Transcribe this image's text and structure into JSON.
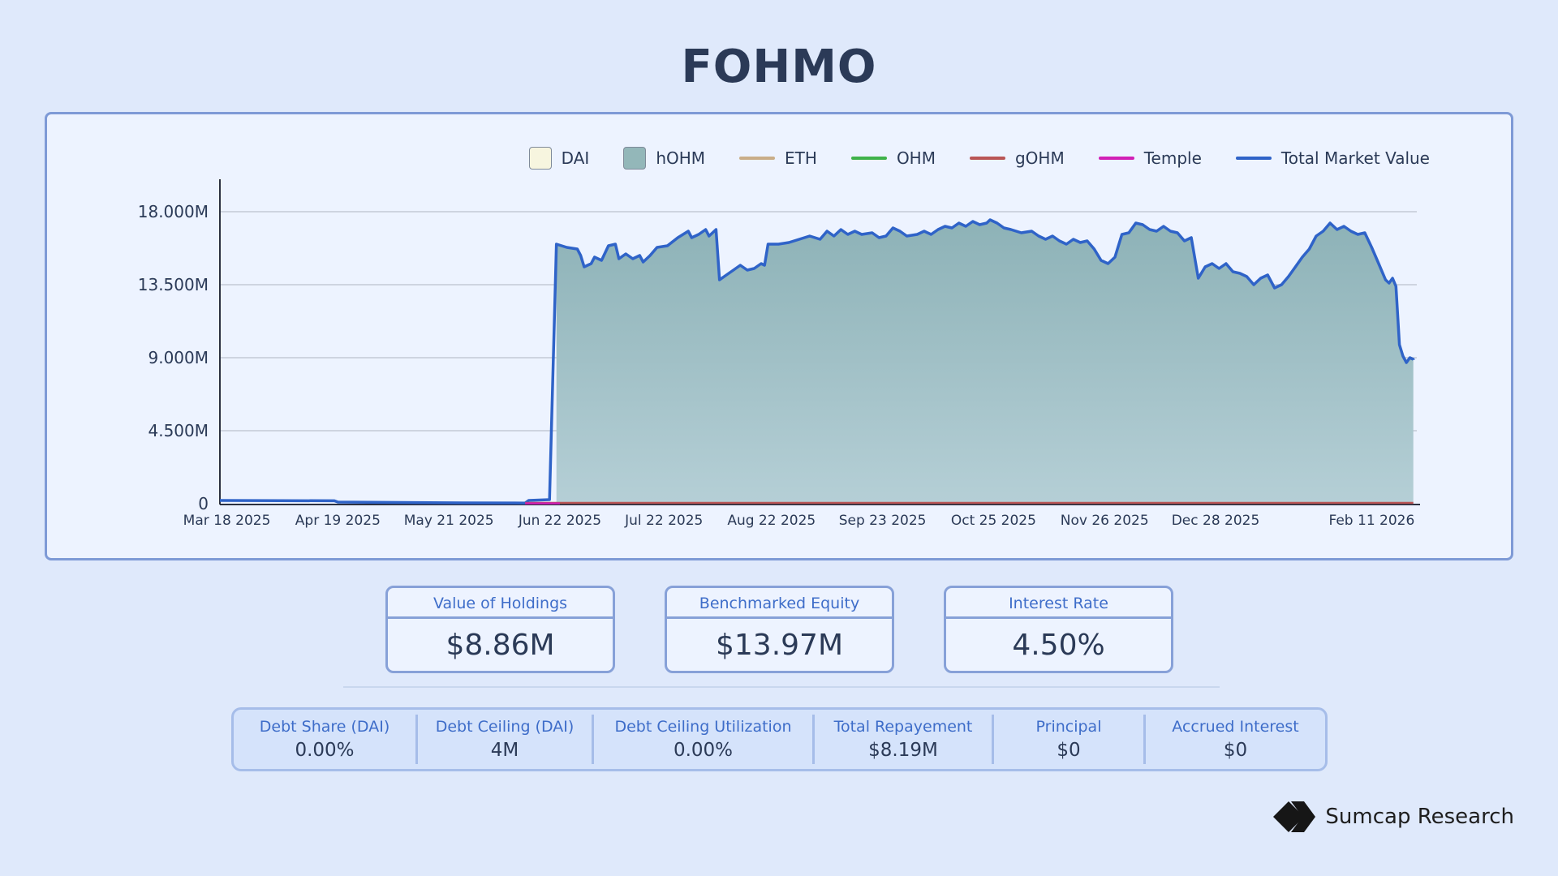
{
  "page": {
    "title": "FOHMO"
  },
  "legend": [
    {
      "label": "DAI",
      "kind": "box",
      "color": "#f7f5df"
    },
    {
      "label": "hOHM",
      "kind": "box",
      "color": "#93b7b9"
    },
    {
      "label": "ETH",
      "kind": "line",
      "color": "#c9ad88"
    },
    {
      "label": "OHM",
      "kind": "line",
      "color": "#3fb24a"
    },
    {
      "label": "gOHM",
      "kind": "line",
      "color": "#b95555"
    },
    {
      "label": "Temple",
      "kind": "line",
      "color": "#d11fb6"
    },
    {
      "label": "Total Market Value",
      "kind": "line",
      "color": "#2f63c8"
    }
  ],
  "chart_data": {
    "type": "area",
    "ylim": [
      0,
      20000000
    ],
    "yticks": [
      {
        "v": 0,
        "label": "0"
      },
      {
        "v": 4500000,
        "label": "4.500M"
      },
      {
        "v": 9000000,
        "label": "9.000M"
      },
      {
        "v": 13500000,
        "label": "13.500M"
      },
      {
        "v": 18000000,
        "label": "18.000M"
      }
    ],
    "xlim": [
      "2025-03-16",
      "2026-02-24"
    ],
    "xticks": [
      {
        "date": "2025-03-18",
        "label": "Mar 18 2025"
      },
      {
        "date": "2025-04-19",
        "label": "Apr 19 2025"
      },
      {
        "date": "2025-05-21",
        "label": "May 21 2025"
      },
      {
        "date": "2025-06-22",
        "label": "Jun 22 2025"
      },
      {
        "date": "2025-07-22",
        "label": "Jul 22 2025"
      },
      {
        "date": "2025-08-22",
        "label": "Aug 22 2025"
      },
      {
        "date": "2025-09-23",
        "label": "Sep 23 2025"
      },
      {
        "date": "2025-10-25",
        "label": "Oct 25 2025"
      },
      {
        "date": "2025-11-26",
        "label": "Nov 26 2025"
      },
      {
        "date": "2025-12-28",
        "label": "Dec 28 2025"
      },
      {
        "date": "2026-02-11",
        "label": "Feb 11 2026"
      }
    ],
    "grid": true,
    "legend_position": "top-right",
    "series": [
      {
        "name": "Total Market Value",
        "color": "#2f63c8",
        "fill": true,
        "points": [
          [
            "2025-03-16",
            200000
          ],
          [
            "2025-04-18",
            180000
          ],
          [
            "2025-04-19",
            100000
          ],
          [
            "2025-05-25",
            50000
          ],
          [
            "2025-06-12",
            40000
          ],
          [
            "2025-06-13",
            200000
          ],
          [
            "2025-06-19",
            250000
          ],
          [
            "2025-06-21",
            16000000
          ],
          [
            "2025-06-24",
            15800000
          ],
          [
            "2025-06-27",
            15700000
          ],
          [
            "2025-06-28",
            15300000
          ],
          [
            "2025-06-29",
            14600000
          ],
          [
            "2025-07-01",
            14800000
          ],
          [
            "2025-07-02",
            15200000
          ],
          [
            "2025-07-04",
            15000000
          ],
          [
            "2025-07-06",
            15900000
          ],
          [
            "2025-07-08",
            16000000
          ],
          [
            "2025-07-09",
            15100000
          ],
          [
            "2025-07-11",
            15400000
          ],
          [
            "2025-07-13",
            15100000
          ],
          [
            "2025-07-15",
            15300000
          ],
          [
            "2025-07-16",
            14900000
          ],
          [
            "2025-07-18",
            15300000
          ],
          [
            "2025-07-20",
            15800000
          ],
          [
            "2025-07-23",
            15900000
          ],
          [
            "2025-07-26",
            16400000
          ],
          [
            "2025-07-29",
            16800000
          ],
          [
            "2025-07-30",
            16400000
          ],
          [
            "2025-08-01",
            16600000
          ],
          [
            "2025-08-03",
            16900000
          ],
          [
            "2025-08-04",
            16500000
          ],
          [
            "2025-08-06",
            16900000
          ],
          [
            "2025-08-07",
            13800000
          ],
          [
            "2025-08-09",
            14100000
          ],
          [
            "2025-08-11",
            14400000
          ],
          [
            "2025-08-13",
            14700000
          ],
          [
            "2025-08-15",
            14400000
          ],
          [
            "2025-08-17",
            14500000
          ],
          [
            "2025-08-19",
            14800000
          ],
          [
            "2025-08-20",
            14700000
          ],
          [
            "2025-08-21",
            16000000
          ],
          [
            "2025-08-24",
            16000000
          ],
          [
            "2025-08-27",
            16100000
          ],
          [
            "2025-08-30",
            16300000
          ],
          [
            "2025-09-02",
            16500000
          ],
          [
            "2025-09-05",
            16300000
          ],
          [
            "2025-09-07",
            16800000
          ],
          [
            "2025-09-09",
            16500000
          ],
          [
            "2025-09-11",
            16900000
          ],
          [
            "2025-09-13",
            16600000
          ],
          [
            "2025-09-15",
            16800000
          ],
          [
            "2025-09-17",
            16600000
          ],
          [
            "2025-09-20",
            16700000
          ],
          [
            "2025-09-22",
            16400000
          ],
          [
            "2025-09-24",
            16500000
          ],
          [
            "2025-09-26",
            17000000
          ],
          [
            "2025-09-28",
            16800000
          ],
          [
            "2025-09-30",
            16500000
          ],
          [
            "2025-10-03",
            16600000
          ],
          [
            "2025-10-05",
            16800000
          ],
          [
            "2025-10-07",
            16600000
          ],
          [
            "2025-10-09",
            16900000
          ],
          [
            "2025-10-11",
            17100000
          ],
          [
            "2025-10-13",
            17000000
          ],
          [
            "2025-10-15",
            17300000
          ],
          [
            "2025-10-17",
            17100000
          ],
          [
            "2025-10-19",
            17400000
          ],
          [
            "2025-10-21",
            17200000
          ],
          [
            "2025-10-23",
            17300000
          ],
          [
            "2025-10-24",
            17500000
          ],
          [
            "2025-10-26",
            17300000
          ],
          [
            "2025-10-28",
            17000000
          ],
          [
            "2025-10-30",
            16900000
          ],
          [
            "2025-11-02",
            16700000
          ],
          [
            "2025-11-05",
            16800000
          ],
          [
            "2025-11-07",
            16500000
          ],
          [
            "2025-11-09",
            16300000
          ],
          [
            "2025-11-11",
            16500000
          ],
          [
            "2025-11-13",
            16200000
          ],
          [
            "2025-11-15",
            16000000
          ],
          [
            "2025-11-17",
            16300000
          ],
          [
            "2025-11-19",
            16100000
          ],
          [
            "2025-11-21",
            16200000
          ],
          [
            "2025-11-23",
            15700000
          ],
          [
            "2025-11-25",
            15000000
          ],
          [
            "2025-11-27",
            14800000
          ],
          [
            "2025-11-29",
            15200000
          ],
          [
            "2025-12-01",
            16600000
          ],
          [
            "2025-12-03",
            16700000
          ],
          [
            "2025-12-05",
            17300000
          ],
          [
            "2025-12-07",
            17200000
          ],
          [
            "2025-12-09",
            16900000
          ],
          [
            "2025-12-11",
            16800000
          ],
          [
            "2025-12-13",
            17100000
          ],
          [
            "2025-12-15",
            16800000
          ],
          [
            "2025-12-17",
            16700000
          ],
          [
            "2025-12-19",
            16200000
          ],
          [
            "2025-12-21",
            16400000
          ],
          [
            "2025-12-23",
            13900000
          ],
          [
            "2025-12-25",
            14600000
          ],
          [
            "2025-12-27",
            14800000
          ],
          [
            "2025-12-29",
            14500000
          ],
          [
            "2025-12-31",
            14800000
          ],
          [
            "2026-01-02",
            14300000
          ],
          [
            "2026-01-04",
            14200000
          ],
          [
            "2026-01-06",
            14000000
          ],
          [
            "2026-01-08",
            13500000
          ],
          [
            "2026-01-10",
            13900000
          ],
          [
            "2026-01-12",
            14100000
          ],
          [
            "2026-01-14",
            13300000
          ],
          [
            "2026-01-16",
            13500000
          ],
          [
            "2026-01-18",
            14000000
          ],
          [
            "2026-01-20",
            14600000
          ],
          [
            "2026-01-22",
            15200000
          ],
          [
            "2026-01-24",
            15700000
          ],
          [
            "2026-01-26",
            16500000
          ],
          [
            "2026-01-28",
            16800000
          ],
          [
            "2026-01-30",
            17300000
          ],
          [
            "2026-02-01",
            16900000
          ],
          [
            "2026-02-03",
            17100000
          ],
          [
            "2026-02-05",
            16800000
          ],
          [
            "2026-02-07",
            16600000
          ],
          [
            "2026-02-09",
            16700000
          ],
          [
            "2026-02-11",
            15800000
          ],
          [
            "2026-02-13",
            14800000
          ],
          [
            "2026-02-15",
            13800000
          ],
          [
            "2026-02-16",
            13600000
          ],
          [
            "2026-02-17",
            13900000
          ],
          [
            "2026-02-18",
            13400000
          ],
          [
            "2026-02-19",
            9800000
          ],
          [
            "2026-02-20",
            9100000
          ],
          [
            "2026-02-21",
            8700000
          ],
          [
            "2026-02-22",
            9000000
          ],
          [
            "2026-02-23",
            8900000
          ],
          [
            "2026-02-23",
            8860000
          ]
        ]
      },
      {
        "name": "gOHM",
        "color": "#b95555",
        "fill": false,
        "points": [
          [
            "2025-06-12",
            50000
          ],
          [
            "2026-02-23",
            50000
          ]
        ]
      },
      {
        "name": "Temple",
        "color": "#d11fb6",
        "fill": false,
        "points": [
          [
            "2025-06-12",
            20000
          ],
          [
            "2025-06-22",
            20000
          ]
        ]
      }
    ]
  },
  "kpis": [
    {
      "label": "Value of Holdings",
      "value": "$8.86M"
    },
    {
      "label": "Benchmarked Equity",
      "value": "$13.97M"
    },
    {
      "label": "Interest Rate",
      "value": "4.50%"
    }
  ],
  "stats": [
    {
      "label": "Debt Share (DAI)",
      "value": "0.00%"
    },
    {
      "label": "Debt Ceiling (DAI)",
      "value": "4M"
    },
    {
      "label": "Debt Ceiling Utilization",
      "value": "0.00%"
    },
    {
      "label": "Total Repayement",
      "value": "$8.19M"
    },
    {
      "label": "Principal",
      "value": "$0"
    },
    {
      "label": "Accrued Interest",
      "value": "$0"
    }
  ],
  "brand": {
    "name": "Sumcap Research"
  }
}
